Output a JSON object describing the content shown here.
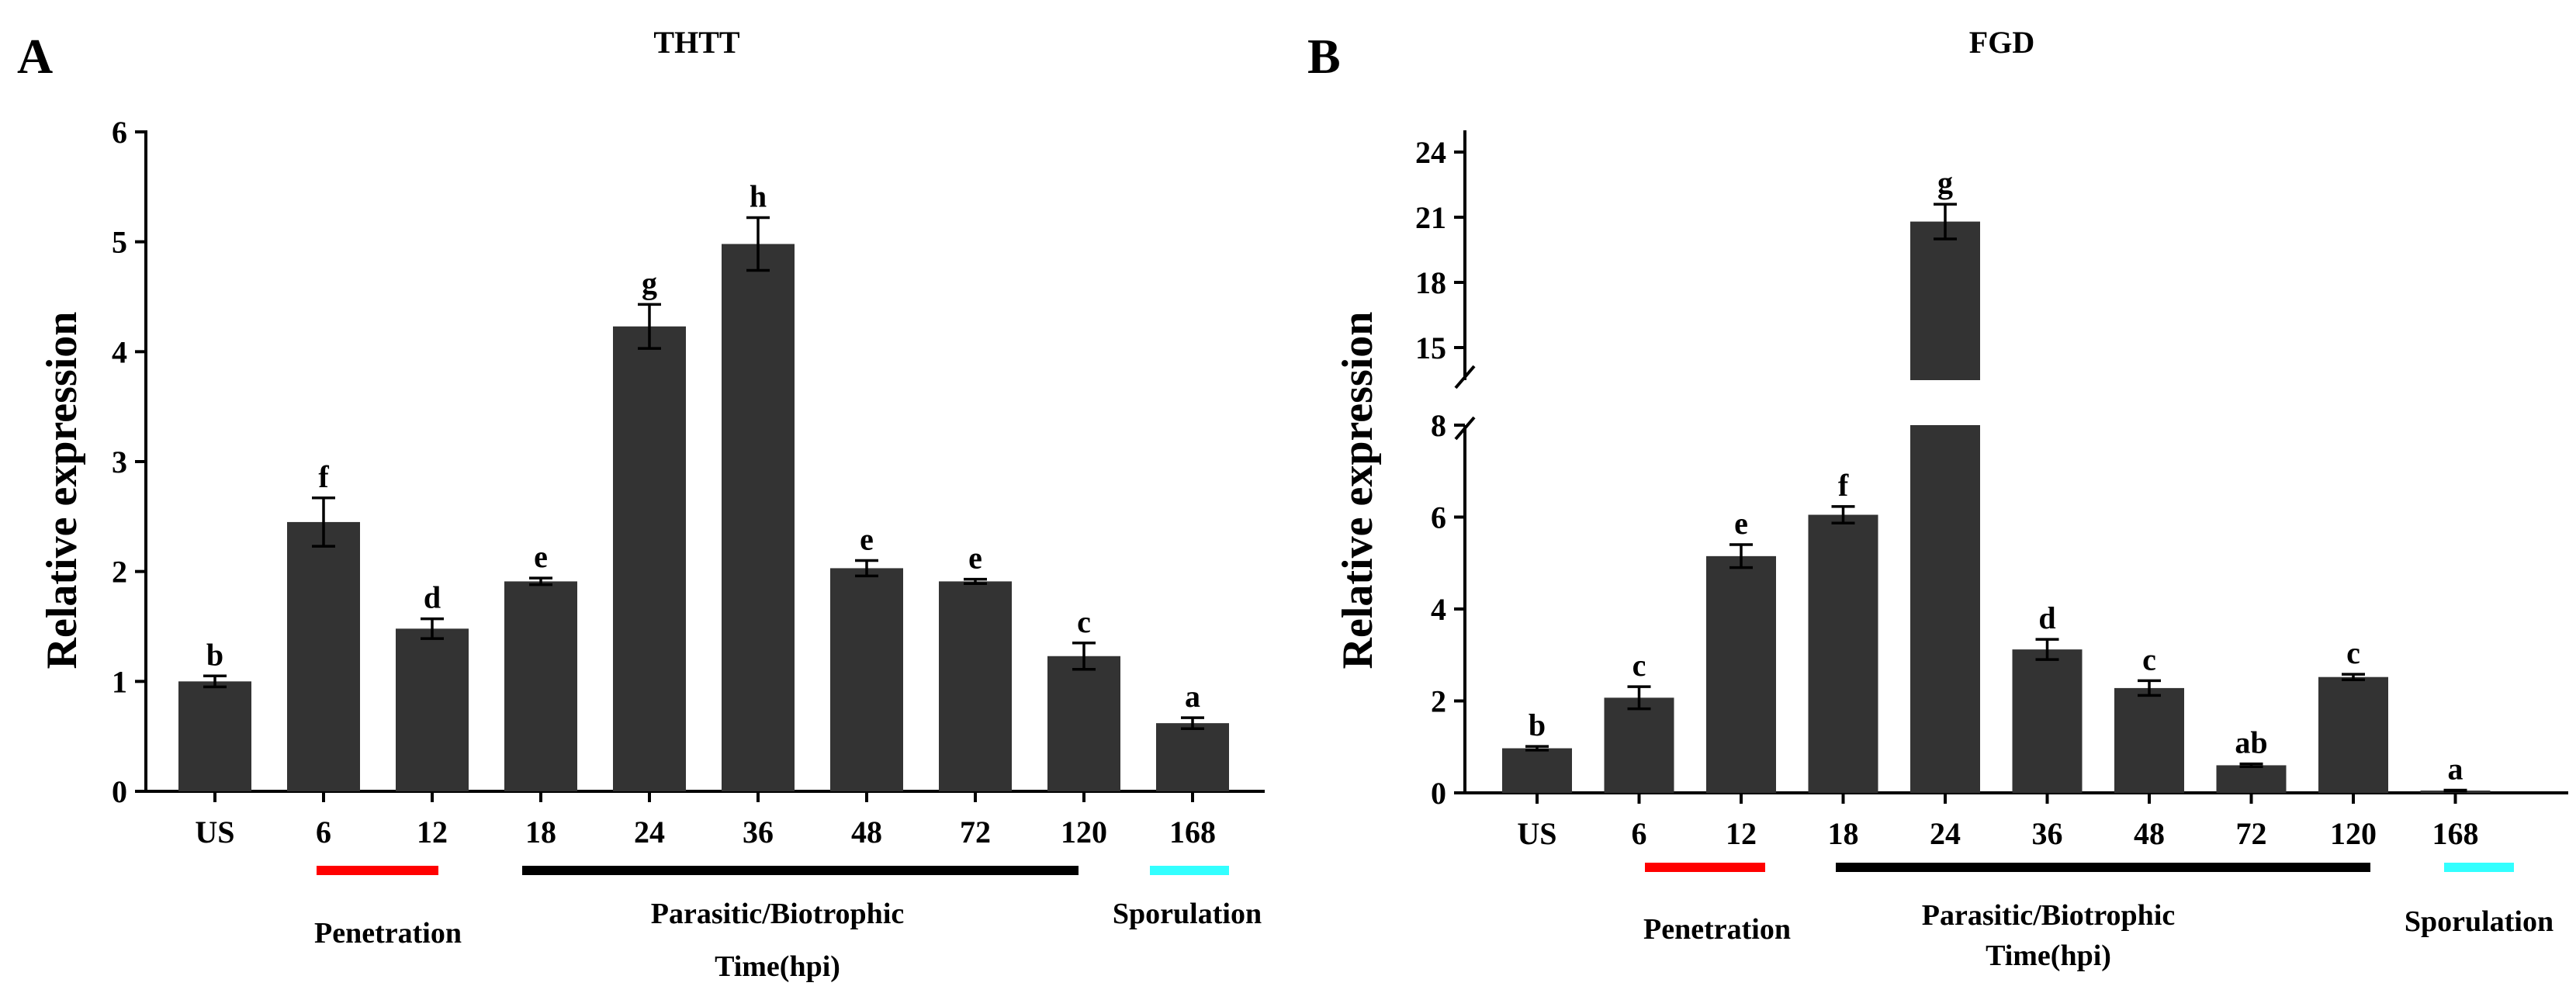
{
  "panels": [
    {
      "id": "A",
      "panel_label": "A",
      "chart_data": {
        "type": "bar",
        "title": "THTT",
        "ylabel": "Relative expression",
        "xlabel": "Time(hpi)",
        "categories": [
          "US",
          "6",
          "12",
          "18",
          "24",
          "36",
          "48",
          "72",
          "120",
          "168"
        ],
        "values": [
          1.0,
          2.45,
          1.48,
          1.91,
          4.23,
          4.98,
          2.03,
          1.91,
          1.23,
          0.62
        ],
        "errors": [
          0.05,
          0.22,
          0.09,
          0.03,
          0.2,
          0.24,
          0.07,
          0.02,
          0.12,
          0.05
        ],
        "significance": [
          "b",
          "f",
          "d",
          "e",
          "g",
          "h",
          "e",
          "e",
          "c",
          "a"
        ],
        "ylim": [
          0,
          6
        ],
        "yticks": [
          0,
          1,
          2,
          3,
          4,
          5,
          6
        ],
        "phases": [
          {
            "label": "Penetration",
            "color": "#ff0000",
            "from": "6",
            "to": "12"
          },
          {
            "label": "Parasitic/Biotrophic",
            "color": "#000000",
            "from": "18",
            "to": "120"
          },
          {
            "label": "Sporulation",
            "color": "#33ffff",
            "from": "168",
            "to": "168"
          }
        ]
      }
    },
    {
      "id": "B",
      "panel_label": "B",
      "chart_data": {
        "type": "bar",
        "title": "FGD",
        "ylabel": "Relative expression",
        "xlabel": "Time(hpi)",
        "categories": [
          "US",
          "6",
          "12",
          "18",
          "24",
          "36",
          "48",
          "72",
          "120",
          "168"
        ],
        "values": [
          0.97,
          2.07,
          5.15,
          6.05,
          20.8,
          3.12,
          2.28,
          0.6,
          2.52,
          0.05
        ],
        "errors": [
          0.04,
          0.24,
          0.25,
          0.18,
          0.8,
          0.22,
          0.16,
          0.03,
          0.06,
          0.01
        ],
        "significance": [
          "b",
          "c",
          "e",
          "f",
          "g",
          "d",
          "c",
          "ab",
          "c",
          "a"
        ],
        "ylim": [
          0,
          25
        ],
        "axis_break": [
          8,
          13.5
        ],
        "yticks_lower": [
          0,
          2,
          4,
          6,
          8
        ],
        "yticks_upper": [
          15,
          18,
          21,
          24
        ],
        "phases": [
          {
            "label": "Penetration",
            "color": "#ff0000",
            "from": "6",
            "to": "12"
          },
          {
            "label": "Parasitic/Biotrophic",
            "color": "#000000",
            "from": "18",
            "to": "120"
          },
          {
            "label": "Sporulation",
            "color": "#33ffff",
            "from": "168",
            "to": "168"
          }
        ]
      }
    }
  ]
}
